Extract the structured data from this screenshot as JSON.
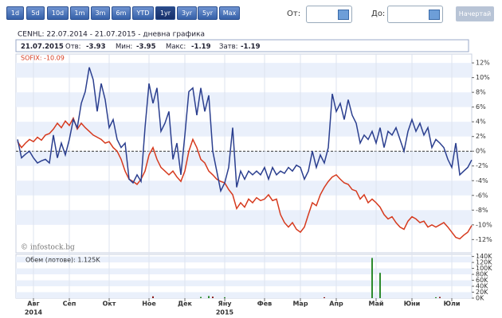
{
  "toolbar": {
    "ranges": [
      "1d",
      "5d",
      "10d",
      "1m",
      "3m",
      "6m",
      "YTD",
      "1yr",
      "3yr",
      "5yr",
      "Max"
    ],
    "selected_index": 7,
    "from_label": "От:",
    "to_label": "До:",
    "button": "Начертай"
  },
  "header": {
    "title": "CENHL: 22.07.2014 - 21.07.2015 - дневна графика",
    "date": "21.07.2015",
    "open_label": "Отв:",
    "open": "-3.93",
    "low_label": "Мин:",
    "low": "-3.95",
    "high_label": "Макс:",
    "high": "-1.19",
    "close_label": "Затв:",
    "close": "-1.19"
  },
  "chart_data": {
    "type": "line",
    "annotation": "SOFIX: -10.09",
    "watermark": "© infostock.bg",
    "categories": [
      null,
      null,
      null,
      null,
      "Авг",
      null,
      null,
      null,
      null,
      null,
      null,
      null,
      null,
      "Сеп",
      null,
      null,
      null,
      null,
      null,
      null,
      null,
      null,
      null,
      "Окт",
      null,
      null,
      null,
      null,
      null,
      null,
      null,
      null,
      null,
      "Ное",
      null,
      null,
      null,
      null,
      null,
      null,
      null,
      null,
      "Дек",
      null,
      null,
      null,
      null,
      null,
      null,
      null,
      null,
      null,
      "Яну",
      null,
      null,
      null,
      null,
      null,
      null,
      null,
      null,
      null,
      "Фев",
      null,
      null,
      null,
      null,
      null,
      null,
      null,
      null,
      "Мар",
      null,
      null,
      null,
      null,
      null,
      null,
      null,
      null,
      "Апр",
      null,
      null,
      null,
      null,
      null,
      null,
      null,
      null,
      null,
      "Май",
      null,
      null,
      null,
      null,
      null,
      null,
      null,
      null,
      "Юни",
      null,
      null,
      null,
      null,
      null,
      null,
      null,
      null,
      null,
      "Юли",
      null,
      null,
      null,
      null,
      null
    ],
    "year_labels": [
      "2014",
      "2015"
    ],
    "series": [
      {
        "name": "CENHL",
        "color": "#2b3f8f",
        "values": [
          1.6,
          -0.9,
          -0.4,
          0,
          -0.9,
          -1.6,
          -1.3,
          -1.1,
          -1.6,
          2.2,
          -0.9,
          1.1,
          -0.5,
          1.6,
          4.3,
          3.2,
          6.5,
          8.1,
          11.4,
          9.7,
          5.4,
          9.2,
          7.0,
          3.2,
          4.3,
          1.6,
          0.5,
          1.1,
          -3.8,
          -4.3,
          -3.2,
          -4.1,
          3.2,
          9.2,
          6.5,
          8.6,
          2.7,
          3.8,
          5.4,
          -1.1,
          1.1,
          -3.2,
          2.2,
          8.1,
          8.6,
          4.9,
          8.6,
          5.4,
          7.6,
          0,
          -2.7,
          -5.4,
          -4.3,
          -2.2,
          3.2,
          -4.9,
          -2.7,
          -3.8,
          -2.7,
          -3.2,
          -2.7,
          -3.2,
          -2.2,
          -3.8,
          -2.2,
          -3.2,
          -2.7,
          -3.0,
          -2.2,
          -2.7,
          -1.9,
          -2.2,
          -3.8,
          -2.7,
          0,
          -2.2,
          -0.5,
          -1.6,
          0.5,
          7.8,
          5.4,
          6.5,
          4.3,
          7.0,
          4.9,
          3.8,
          1.1,
          2.2,
          1.6,
          2.7,
          1.1,
          3.2,
          0.5,
          2.7,
          2.2,
          3.2,
          1.6,
          0,
          2.7,
          4.3,
          2.7,
          3.8,
          2.2,
          3.2,
          0.5,
          1.6,
          1.1,
          0.5,
          -1.1,
          -2.2,
          1.1,
          -3.2,
          -2.7,
          -2.2,
          -1.19
        ]
      },
      {
        "name": "SOFIX",
        "color": "#d63a1e",
        "values": [
          1.3,
          0.5,
          1.1,
          1.6,
          1.3,
          1.9,
          1.5,
          2.2,
          2.4,
          3.0,
          3.8,
          3.2,
          4.1,
          3.5,
          4.5,
          3.0,
          3.8,
          3.2,
          2.7,
          2.2,
          1.9,
          1.6,
          1.1,
          1.3,
          0.5,
          0,
          -1.1,
          -2.7,
          -3.8,
          -4.1,
          -4.5,
          -3.8,
          -2.7,
          -0.5,
          0.5,
          -1.1,
          -2.2,
          -2.7,
          -3.2,
          -2.7,
          -3.5,
          -4.1,
          -2.7,
          0,
          1.6,
          0.5,
          -1.1,
          -1.6,
          -2.7,
          -3.2,
          -3.8,
          -4.1,
          -4.3,
          -5.2,
          -5.9,
          -7.8,
          -7.0,
          -7.6,
          -6.5,
          -7.0,
          -6.3,
          -6.7,
          -6.5,
          -5.9,
          -6.7,
          -6.5,
          -8.6,
          -9.7,
          -10.3,
          -9.7,
          -10.6,
          -11.0,
          -10.3,
          -8.6,
          -7.0,
          -7.4,
          -5.9,
          -4.9,
          -4.1,
          -3.5,
          -3.2,
          -3.8,
          -4.3,
          -4.5,
          -5.2,
          -5.4,
          -6.5,
          -5.9,
          -7.0,
          -6.5,
          -7.0,
          -7.6,
          -8.6,
          -9.2,
          -8.9,
          -9.7,
          -10.3,
          -10.6,
          -9.5,
          -8.9,
          -9.2,
          -9.7,
          -9.5,
          -10.3,
          -10.0,
          -10.3,
          -10.0,
          -9.7,
          -10.3,
          -11.0,
          -11.7,
          -11.9,
          -11.4,
          -11.0,
          -10.09
        ]
      }
    ],
    "ylim": [
      -13.8,
      13.2
    ],
    "yticks": [
      {
        "value": 12,
        "label": "12%"
      },
      {
        "value": 10,
        "label": "10%"
      },
      {
        "value": 8,
        "label": "8%"
      },
      {
        "value": 6,
        "label": "6%"
      },
      {
        "value": 4,
        "label": "4%"
      },
      {
        "value": 2,
        "label": "2%"
      },
      {
        "value": 0,
        "label": "0%"
      },
      {
        "value": -2,
        "label": "-2%"
      },
      {
        "value": -4,
        "label": "-4%"
      },
      {
        "value": -6,
        "label": "-6%"
      },
      {
        "value": -8,
        "label": "-8%"
      },
      {
        "value": -10,
        "label": "-10%"
      },
      {
        "value": -12,
        "label": "-12%"
      }
    ],
    "volume": {
      "type": "bar",
      "label": "Обем (лотове): 1.125K",
      "up_color": "#2e8b2e",
      "down_color": "#8b1a1a",
      "values": [
        0,
        0,
        0,
        0,
        0,
        0,
        0,
        0,
        0,
        0,
        0,
        0,
        0,
        0,
        0,
        0,
        0,
        0,
        0,
        0,
        0,
        0,
        0,
        0,
        0,
        0,
        0,
        0,
        0,
        0,
        0,
        0,
        0,
        0,
        6,
        0,
        0,
        0,
        0,
        0,
        0,
        0,
        0,
        0,
        0,
        0,
        4,
        0,
        7,
        5,
        0,
        0,
        3,
        0,
        0,
        0,
        0,
        0,
        0,
        0,
        0,
        0,
        0,
        0,
        0,
        0,
        0,
        0,
        0,
        0,
        0,
        0,
        0,
        0,
        0,
        0,
        0,
        3,
        0,
        0,
        0,
        0,
        0,
        0,
        0,
        0,
        0,
        0,
        0,
        135,
        0,
        85,
        0,
        0,
        0,
        0,
        0,
        0,
        0,
        0,
        0,
        0,
        0,
        0,
        0,
        3,
        4,
        0,
        0,
        0,
        0,
        0,
        0,
        0,
        0
      ],
      "ylim": [
        0,
        147
      ],
      "yticks": [
        {
          "value": 140,
          "label": "140K"
        },
        {
          "value": 120,
          "label": "120K"
        },
        {
          "value": 100,
          "label": "100K"
        },
        {
          "value": 80,
          "label": "80K"
        },
        {
          "value": 60,
          "label": "60K"
        },
        {
          "value": 40,
          "label": "40K"
        },
        {
          "value": 20,
          "label": "20K"
        },
        {
          "value": 0,
          "label": "0K"
        }
      ]
    }
  }
}
